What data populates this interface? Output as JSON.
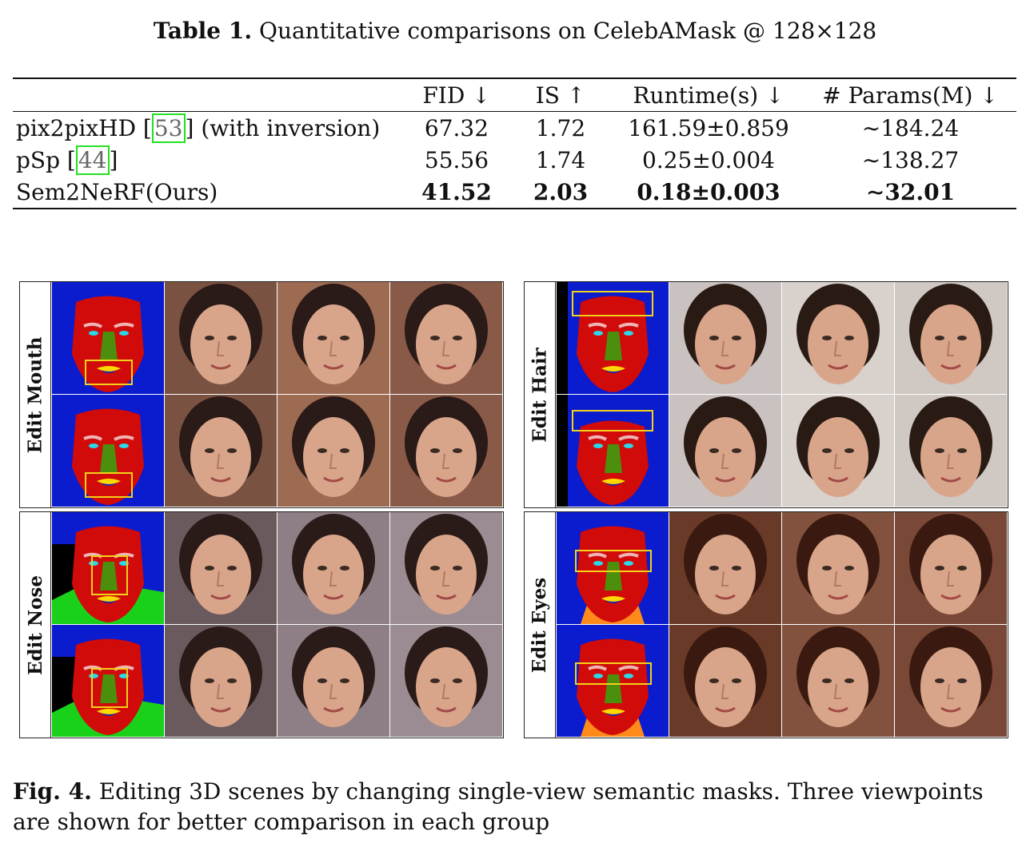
{
  "table": {
    "caption_label": "Table 1.",
    "caption_text": "Quantitative comparisons on CelebAMask @ 128×128",
    "headers": [
      "",
      "FID ↓",
      "IS ↑",
      "Runtime(s) ↓",
      "# Params(M) ↓"
    ],
    "rows": [
      {
        "method_prefix": "pix2pixHD [",
        "cite": "53",
        "method_suffix": "] (with inversion)",
        "fid": "67.32",
        "is": "1.72",
        "runtime": "161.59±0.859",
        "params": "∼184.24"
      },
      {
        "method_prefix": "pSp [",
        "cite": "44",
        "method_suffix": "]",
        "fid": "55.56",
        "is": "1.74",
        "runtime": "0.25±0.004",
        "params": "∼138.27"
      },
      {
        "method_prefix": "Sem2NeRF(Ours)",
        "cite": "",
        "method_suffix": "",
        "fid": "41.52",
        "is": "2.03",
        "runtime": "0.18±0.003",
        "params": "∼32.01"
      }
    ]
  },
  "figure": {
    "panels": [
      {
        "label": "Edit Mouth"
      },
      {
        "label": "Edit Hair"
      },
      {
        "label": "Edit Nose"
      },
      {
        "label": "Edit Eyes"
      }
    ],
    "mask_colors": {
      "background": "#0a1ccd",
      "skin": "#d10a0a",
      "nose": "#4c8f0c",
      "eye": "#2ad8e8",
      "brow": "#f0b4b4",
      "mouth": "#ffd700",
      "lip_lower": "#1a2aaa",
      "neck": "#ff8a1c",
      "cloth": "#19d119",
      "hair_dark": "#000000",
      "box": "#f2d21a"
    }
  },
  "fig_caption": {
    "label": "Fig. 4.",
    "text": "Editing 3D scenes by changing single-view semantic masks. Three viewpoints are shown for better comparison in each group"
  }
}
